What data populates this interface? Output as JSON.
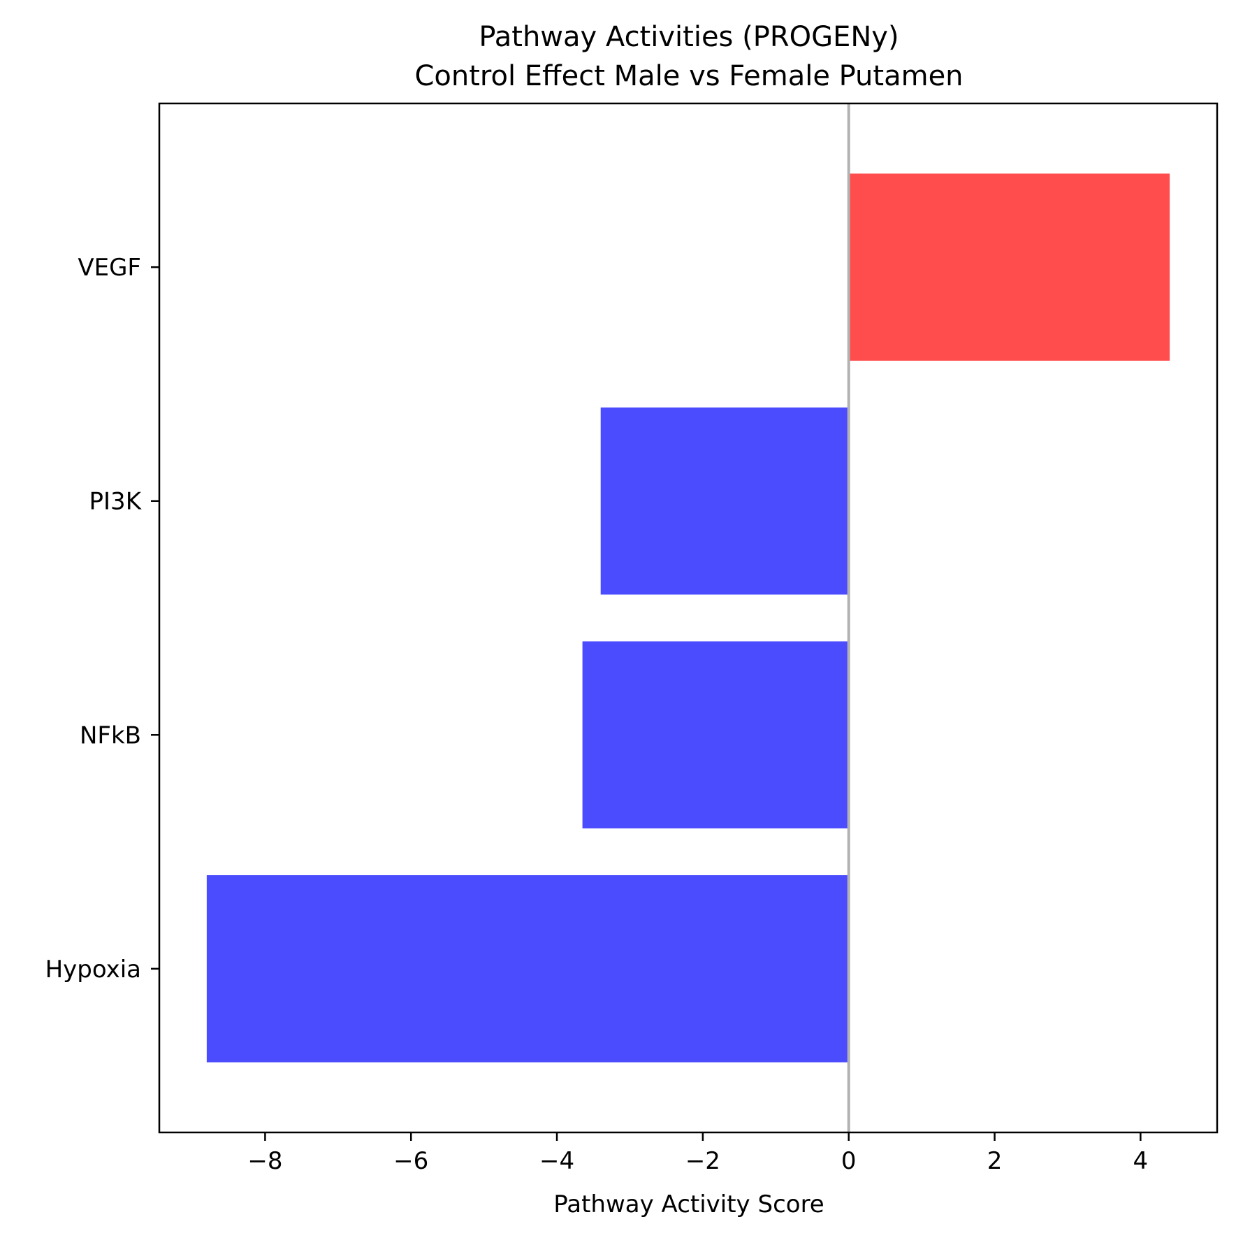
{
  "chart_data": {
    "type": "bar",
    "orientation": "horizontal",
    "title_line1": "Pathway Activities (PROGENy)",
    "title_line2": "Control Effect Male vs Female Putamen",
    "xlabel": "Pathway Activity Score",
    "ylabel": "",
    "categories": [
      "VEGF",
      "PI3K",
      "NFkB",
      "Hypoxia"
    ],
    "values": [
      4.4,
      -3.4,
      -3.65,
      -8.8
    ],
    "xlim": [
      -9.45,
      5.05
    ],
    "xticks": [
      -8,
      -6,
      -4,
      -2,
      0,
      2,
      4
    ],
    "xtick_labels": [
      "−8",
      "−6",
      "−4",
      "−2",
      "0",
      "2",
      "4"
    ],
    "zero_line": true,
    "grid": false,
    "legend": "none",
    "colors": {
      "positive": "#ff4c4c",
      "negative": "#4c4cff",
      "zero_line": "#b2b2b2",
      "axes": "#000000"
    }
  }
}
